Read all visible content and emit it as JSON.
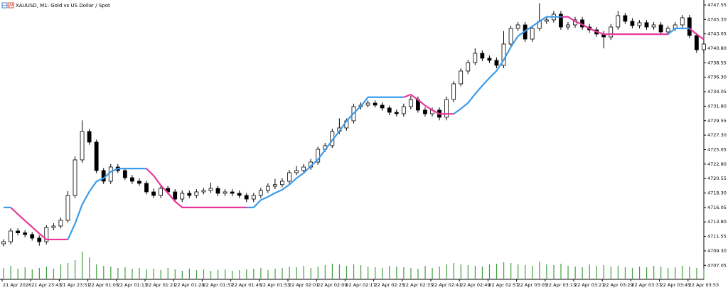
{
  "chart_data": {
    "type": "candlestick",
    "title": "XAUUSD, M1: Gold vs US Dollar / Spot",
    "categories": [
      "21 Apr 2026",
      null,
      null,
      null,
      "21 Apr 23:43",
      null,
      null,
      null,
      "21 Apr 23:51",
      null,
      null,
      null,
      "22 Apr 01:05",
      null,
      null,
      null,
      "22 Apr 01:13",
      null,
      null,
      null,
      "22 Apr 01:21",
      null,
      null,
      null,
      "22 Apr 01:29",
      null,
      null,
      null,
      "22 Apr 01:37",
      null,
      null,
      null,
      "22 Apr 01:45",
      null,
      null,
      null,
      "22 Apr 01:53",
      null,
      null,
      null,
      "22 Apr 02:01",
      null,
      null,
      null,
      "22 Apr 02:09",
      null,
      null,
      null,
      "22 Apr 02:17",
      null,
      null,
      null,
      "22 Apr 02:25",
      null,
      null,
      null,
      "22 Apr 02:33",
      null,
      null,
      null,
      "22 Apr 02:41",
      null,
      null,
      null,
      "22 Apr 02:49",
      null,
      null,
      null,
      "22 Apr 02:57",
      null,
      null,
      null,
      "22 Apr 03:05",
      null,
      null,
      null,
      "22 Apr 03:13",
      null,
      null,
      null,
      "22 Apr 03:21",
      null,
      null,
      null,
      "22 Apr 03:29",
      null,
      null,
      null,
      "22 Apr 03:37",
      null,
      null,
      null,
      "22 Apr 03:45",
      null,
      null,
      null,
      "22 Apr 03:53",
      null,
      null
    ],
    "open": [
      4710.4,
      4710.73,
      4712.39,
      4712.1,
      4711.84,
      4711.28,
      4710.73,
      4712.94,
      4713.16,
      4714.05,
      4717.92,
      4723.45,
      4727.87,
      4726.21,
      4721.79,
      4720.13,
      4722.34,
      4721.79,
      4720.68,
      4720.13,
      4719.8,
      4718.47,
      4717.92,
      4719.02,
      4718.47,
      4717.36,
      4718.25,
      4717.92,
      4718.47,
      4718.69,
      4719.02,
      4718.25,
      4718.47,
      4718.25,
      4717.92,
      4717.36,
      4717.92,
      4718.69,
      4719.35,
      4719.6,
      4720.13,
      4721.46,
      4721.79,
      4722.34,
      4723.11,
      4725.1,
      4725.66,
      4727.87,
      4728.42,
      4729.53,
      4731.74,
      4731.96,
      4732.29,
      4731.96,
      4731.52,
      4730.85,
      4730.63,
      4731.74,
      4732.84,
      4731.19,
      4730.63,
      4731.19,
      4730.08,
      4732.84,
      4735.28,
      4737.27,
      4738.59,
      4740.03,
      4739.26,
      4738.93,
      4738.15,
      4741.47,
      4743.9,
      4744.45,
      4742.24,
      4743.9,
      4745.01,
      4745.23,
      4746.11,
      4744.12,
      4744.45,
      4745.23,
      4744.12,
      4743.68,
      4743.02,
      4742.57,
      4744.12,
      4745.89,
      4745.01,
      4744.34,
      4744.79,
      4744.12,
      4744.45,
      4743.35,
      4743.9,
      4744.45,
      4745.56,
      4742.8,
      4740.58
    ],
    "high": [
      4711.1,
      4712.8,
      4712.8,
      4712.5,
      4712.2,
      4711.7,
      4713.3,
      4713.6,
      4714.5,
      4718.6,
      4724.0,
      4729.6,
      4728.3,
      4726.6,
      4722.2,
      4722.8,
      4722.8,
      4722.2,
      4721.1,
      4720.6,
      4720.2,
      4719.0,
      4719.5,
      4719.4,
      4718.9,
      4718.7,
      4718.7,
      4718.9,
      4719.1,
      4719.9,
      4719.4,
      4718.9,
      4718.9,
      4718.7,
      4718.3,
      4718.3,
      4719.1,
      4719.8,
      4720.5,
      4720.6,
      4721.9,
      4722.5,
      4722.8,
      4723.6,
      4725.5,
      4726.1,
      4728.3,
      4729.9,
      4729.9,
      4732.2,
      4732.4,
      4732.7,
      4732.7,
      4732.4,
      4731.9,
      4731.3,
      4732.2,
      4733.4,
      4733.3,
      4731.6,
      4731.6,
      4731.6,
      4733.3,
      4735.7,
      4737.7,
      4739.0,
      4740.8,
      4740.5,
      4739.7,
      4739.4,
      4743.5,
      4744.3,
      4744.9,
      4744.9,
      4744.3,
      4747.8,
      4745.7,
      4746.6,
      4746.6,
      4744.9,
      4745.7,
      4745.7,
      4744.6,
      4744.1,
      4743.5,
      4744.6,
      4746.6,
      4746.3,
      4745.5,
      4745.2,
      4745.2,
      4744.9,
      4744.9,
      4744.3,
      4744.9,
      4746.0,
      4746.0,
      4743.2,
      4742.0
    ],
    "low": [
      4710.0,
      4710.3,
      4711.7,
      4711.4,
      4710.9,
      4710.1,
      4710.3,
      4712.5,
      4712.8,
      4713.7,
      4717.5,
      4723.0,
      4725.8,
      4721.4,
      4719.7,
      4719.7,
      4721.4,
      4720.3,
      4719.7,
      4719.4,
      4718.1,
      4717.5,
      4717.5,
      4718.1,
      4716.9,
      4716.9,
      4717.5,
      4717.5,
      4718.1,
      4718.3,
      4717.8,
      4717.8,
      4717.8,
      4717.5,
      4716.9,
      4716.9,
      4717.5,
      4718.3,
      4718.9,
      4719.2,
      4719.7,
      4721.1,
      4721.4,
      4721.9,
      4722.7,
      4724.7,
      4725.3,
      4727.5,
      4728.0,
      4729.1,
      4731.3,
      4731.6,
      4731.6,
      4731.1,
      4730.4,
      4730.2,
      4730.2,
      4731.3,
      4730.8,
      4730.2,
      4730.2,
      4729.6,
      4729.6,
      4732.4,
      4734.9,
      4736.8,
      4738.2,
      4738.8,
      4738.5,
      4737.7,
      4737.7,
      4741.0,
      4743.5,
      4741.8,
      4741.8,
      4743.5,
      4744.6,
      4744.8,
      4743.7,
      4743.7,
      4744.0,
      4743.7,
      4743.2,
      4742.6,
      4740.8,
      4742.1,
      4743.7,
      4744.6,
      4743.9,
      4743.9,
      4743.7,
      4743.7,
      4742.9,
      4742.9,
      4743.5,
      4744.0,
      4742.4,
      4740.1,
      4740.1
    ],
    "close": [
      4710.73,
      4712.39,
      4712.1,
      4711.84,
      4711.28,
      4710.73,
      4712.94,
      4713.16,
      4714.05,
      4717.92,
      4723.45,
      4727.87,
      4726.21,
      4721.79,
      4720.13,
      4722.34,
      4721.79,
      4720.68,
      4720.13,
      4719.8,
      4718.47,
      4717.92,
      4719.02,
      4718.47,
      4717.36,
      4718.25,
      4717.92,
      4718.47,
      4718.69,
      4719.02,
      4718.25,
      4718.47,
      4718.25,
      4717.92,
      4717.36,
      4717.92,
      4718.69,
      4719.35,
      4719.6,
      4720.13,
      4721.46,
      4721.79,
      4722.34,
      4723.11,
      4725.1,
      4725.66,
      4727.87,
      4728.42,
      4729.53,
      4731.74,
      4731.96,
      4732.29,
      4731.96,
      4731.52,
      4730.85,
      4730.63,
      4731.74,
      4732.84,
      4731.19,
      4730.63,
      4731.19,
      4730.08,
      4732.84,
      4735.28,
      4737.27,
      4738.59,
      4740.03,
      4739.26,
      4738.93,
      4738.15,
      4741.47,
      4743.9,
      4744.45,
      4742.24,
      4743.9,
      4745.01,
      4745.23,
      4746.11,
      4744.12,
      4744.45,
      4745.23,
      4744.12,
      4743.68,
      4743.02,
      4742.57,
      4744.12,
      4745.89,
      4745.01,
      4744.34,
      4744.79,
      4744.12,
      4744.45,
      4743.35,
      4743.9,
      4744.45,
      4745.56,
      4742.8,
      4740.58,
      4741.47
    ],
    "volume": [
      30,
      36,
      28,
      32,
      26,
      30,
      34,
      28,
      40,
      44,
      52,
      76,
      60,
      40,
      36,
      34,
      30,
      32,
      28,
      30,
      26,
      28,
      24,
      30,
      26,
      22,
      28,
      24,
      26,
      22,
      24,
      26,
      22,
      24,
      26,
      28,
      30,
      24,
      28,
      30,
      34,
      32,
      36,
      30,
      34,
      38,
      42,
      40,
      36,
      40,
      38,
      34,
      32,
      30,
      36,
      34,
      32,
      30,
      28,
      36,
      30,
      34,
      40,
      44,
      40,
      38,
      36,
      34,
      40,
      42,
      46,
      44,
      40,
      38,
      36,
      48,
      40,
      38,
      42,
      36,
      34,
      32,
      40,
      36,
      38,
      34,
      36,
      32,
      30,
      34,
      32,
      36,
      34,
      30,
      32,
      36,
      34,
      30,
      28
    ],
    "up_color": "#ffffff",
    "down_color": "#000000",
    "outline_color": "#000000",
    "volume_color": "#3f9e3f",
    "lines": [
      {
        "color": "#3d9be9",
        "values": [
          4716.05,
          4716.05,
          null,
          null,
          null,
          null,
          null,
          null,
          null,
          4711.07,
          4713.5,
          4716.5,
          4718.5,
          4720.1,
          4720.6,
          4721.6,
          4722.1,
          4722.1,
          4722.1,
          4722.1,
          4722.1,
          null,
          null,
          null,
          null,
          null,
          null,
          null,
          null,
          null,
          null,
          null,
          null,
          null,
          4716.05,
          4716.05,
          4717.2,
          4717.7,
          4718.3,
          4718.8,
          4719.6,
          4720.6,
          4721.4,
          4722.5,
          4723.5,
          4725.0,
          4726.5,
          4727.9,
          4729.5,
          4730.7,
          4731.8,
          4733.2,
          4733.2,
          4733.2,
          4733.2,
          4733.2,
          4733.2,
          null,
          null,
          null,
          null,
          null,
          null,
          4730.6,
          4731.4,
          4732.3,
          4733.7,
          4735.0,
          4736.2,
          4737.3,
          4739.0,
          4741.0,
          4742.7,
          4743.5,
          4744.2,
          4745.0,
          4745.7,
          4745.7,
          4745.7,
          null,
          null,
          null,
          null,
          null,
          null,
          null,
          null,
          null,
          null,
          null,
          null,
          null,
          null,
          4743.0,
          4743.9,
          4743.9,
          4743.9,
          null,
          null
        ]
      },
      {
        "color": "#e8389a",
        "values": [
          null,
          4716.05,
          4715.0,
          4714.0,
          4713.0,
          4712.0,
          4711.07,
          4711.07,
          4711.07,
          4711.07,
          null,
          null,
          null,
          null,
          null,
          null,
          null,
          null,
          null,
          null,
          4722.1,
          4721.0,
          4719.5,
          4718.3,
          4717.0,
          4716.05,
          4716.05,
          4716.05,
          4716.05,
          4716.05,
          4716.05,
          4716.05,
          4716.05,
          4716.05,
          4716.05,
          null,
          null,
          null,
          null,
          null,
          null,
          null,
          null,
          null,
          null,
          null,
          null,
          null,
          null,
          null,
          null,
          null,
          null,
          null,
          null,
          null,
          4733.2,
          4733.6,
          4732.8,
          4731.9,
          4731.2,
          4730.6,
          4730.6,
          4730.6,
          null,
          null,
          null,
          null,
          null,
          null,
          null,
          null,
          null,
          null,
          null,
          null,
          null,
          null,
          4745.7,
          4745.7,
          4745.0,
          4744.5,
          4743.9,
          4743.4,
          4743.0,
          4743.0,
          4743.0,
          4743.0,
          4743.0,
          4743.0,
          4743.0,
          4743.0,
          4743.0,
          4743.0,
          null,
          null,
          4743.9,
          4743.0,
          4742.2
        ]
      }
    ],
    "ylim": [
      4704.98,
      4748.32
    ],
    "yticks": [
      4747.55,
      {
        "value": 4745.3,
        "label": "4745.30"
      },
      4743.05,
      {
        "value": 4740.8,
        "label": "4740.80"
      },
      4738.55,
      {
        "value": 4736.3,
        "label": "4736.30"
      },
      4734.05,
      {
        "value": 4731.8,
        "label": "4731.80"
      },
      4729.55,
      {
        "value": 4727.3,
        "label": "4727.30"
      },
      4725.05,
      {
        "value": 4722.8,
        "label": "4722.80"
      },
      4720.55,
      {
        "value": 4718.3,
        "label": "4718.30"
      },
      4716.05,
      {
        "value": 4713.8,
        "label": "4713.80"
      },
      4711.55,
      {
        "value": 4709.3,
        "label": "4709.30"
      },
      4707.05
    ]
  }
}
